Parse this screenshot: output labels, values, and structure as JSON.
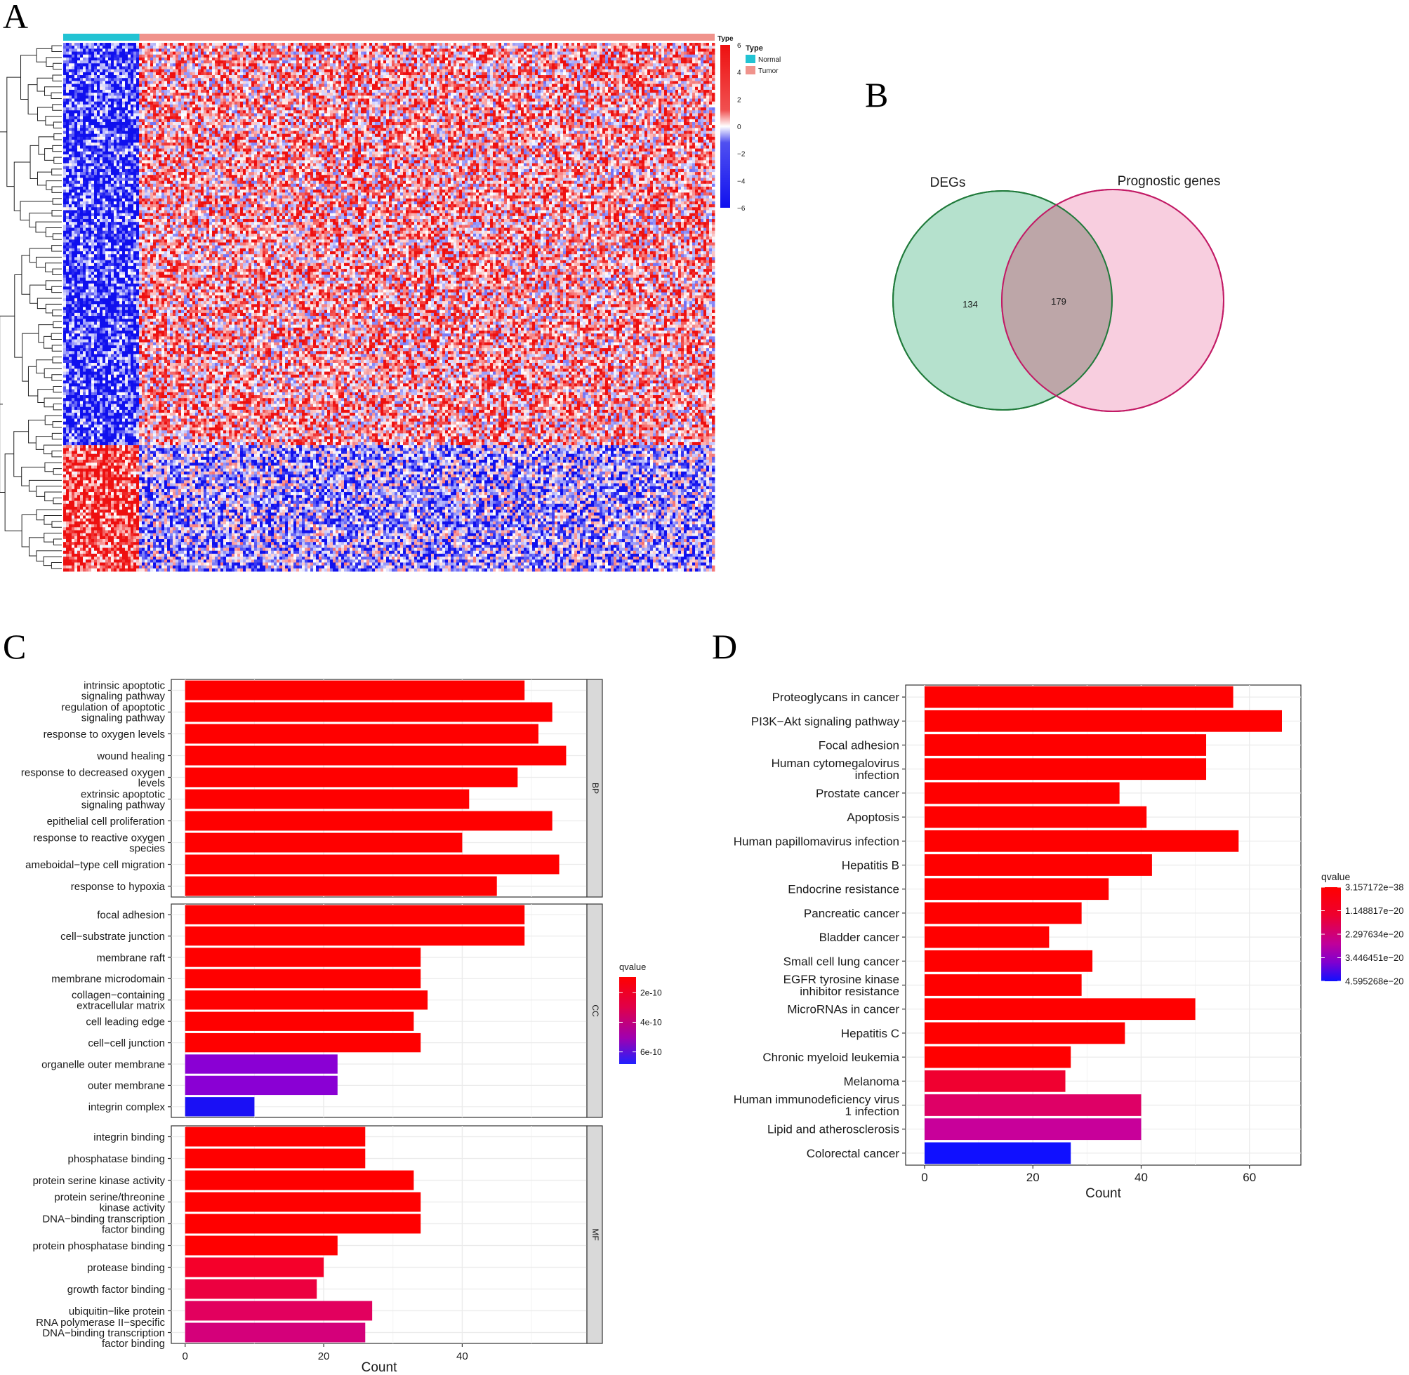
{
  "panels": {
    "A": "A",
    "B": "B",
    "C": "C",
    "D": "D"
  },
  "chart_data": [
    {
      "panel": "A",
      "type": "heatmap",
      "annotation": {
        "title": "Type",
        "groups": [
          {
            "name": "Normal",
            "color": "#22c3d3",
            "fraction": 0.117
          },
          {
            "name": "Tumor",
            "color": "#f0938c",
            "fraction": 0.883
          }
        ]
      },
      "scale": {
        "min": -6,
        "max": 6,
        "ticks": [
          6,
          4,
          2,
          0,
          -2,
          -4,
          -6
        ],
        "ticklabels": [
          "6",
          "4",
          "2",
          "0",
          "−2",
          "−4",
          "−6"
        ],
        "low_color": "#1010ee",
        "mid_color": "#ffffff",
        "high_color": "#ee1010"
      },
      "dendrogram": "rows",
      "row_split_fraction": 0.76
    },
    {
      "panel": "B",
      "type": "venn",
      "sets": [
        {
          "name": "DEGs",
          "color": "#a8dcc4",
          "stroke": "#1f7a3a"
        },
        {
          "name": "Prognostic genes",
          "color": "#f5b9d2",
          "stroke": "#c21a65"
        }
      ],
      "counts": {
        "only_first": 134,
        "intersection": 179
      }
    },
    {
      "panel": "C",
      "type": "bar",
      "orientation": "horizontal",
      "xlabel": "Count",
      "xticks": [
        0,
        20,
        40
      ],
      "xlim": [
        -2,
        58
      ],
      "legend": {
        "title": "qvalue",
        "ticks": [
          "2e-10",
          "4e-10",
          "6e-10"
        ]
      },
      "facets": [
        {
          "name": "BP",
          "categories": [
            [
              "intrinsic apoptotic",
              "signaling pathway"
            ],
            [
              "regulation of apoptotic",
              "signaling pathway"
            ],
            [
              "response to oxygen levels"
            ],
            [
              "wound healing"
            ],
            [
              "response to decreased oxygen",
              "levels"
            ],
            [
              "extrinsic apoptotic",
              "signaling pathway"
            ],
            [
              "epithelial cell proliferation"
            ],
            [
              "response to reactive oxygen",
              "species"
            ],
            [
              "ameboidal−type cell migration"
            ],
            [
              "response to hypoxia"
            ]
          ],
          "values": [
            49,
            53,
            51,
            55,
            48,
            41,
            53,
            40,
            54,
            45
          ],
          "colors": [
            "#ff0000",
            "#ff0000",
            "#ff0000",
            "#ff0000",
            "#ff0000",
            "#ff0000",
            "#ff0000",
            "#ff0000",
            "#ff0000",
            "#ff0000"
          ]
        },
        {
          "name": "CC",
          "categories": [
            [
              "focal adhesion"
            ],
            [
              "cell−substrate junction"
            ],
            [
              "membrane raft"
            ],
            [
              "membrane microdomain"
            ],
            [
              "collagen−containing",
              "extracellular matrix"
            ],
            [
              "cell leading edge"
            ],
            [
              "cell−cell junction"
            ],
            [
              "organelle outer membrane"
            ],
            [
              "outer membrane"
            ],
            [
              "integrin complex"
            ]
          ],
          "values": [
            49,
            49,
            34,
            34,
            35,
            33,
            34,
            22,
            22,
            10
          ],
          "colors": [
            "#ff0000",
            "#ff0000",
            "#ff0000",
            "#ff0000",
            "#ff0000",
            "#ff0000",
            "#ff0000",
            "#8a00d4",
            "#8a00d4",
            "#1a10f5"
          ]
        },
        {
          "name": "MF",
          "categories": [
            [
              "integrin binding"
            ],
            [
              "phosphatase binding"
            ],
            [
              "protein serine kinase activity"
            ],
            [
              "protein serine/threonine",
              "kinase activity"
            ],
            [
              "DNA−binding transcription",
              "factor binding"
            ],
            [
              "protein phosphatase binding"
            ],
            [
              "protease binding"
            ],
            [
              "growth factor binding"
            ],
            [
              "ubiquitin−like protein"
            ],
            [
              "RNA polymerase II−specific",
              "DNA−binding transcription",
              "factor binding"
            ]
          ],
          "values": [
            26,
            26,
            33,
            34,
            34,
            22,
            20,
            19,
            27,
            26
          ],
          "colors": [
            "#ff0000",
            "#ff0000",
            "#ff0000",
            "#ff0000",
            "#ff0000",
            "#ff0000",
            "#f5002a",
            "#ec0040",
            "#e2005e",
            "#d4007a"
          ]
        }
      ]
    },
    {
      "panel": "D",
      "type": "bar",
      "orientation": "horizontal",
      "xlabel": "Count",
      "xticks": [
        0,
        20,
        40,
        60
      ],
      "xlim": [
        -3.5,
        69.5
      ],
      "legend": {
        "title": "qvalue",
        "ticks": [
          "3.157172e−38",
          "1.148817e−20",
          "2.297634e−20",
          "3.446451e−20",
          "4.595268e−20"
        ]
      },
      "categories": [
        [
          "Proteoglycans in cancer"
        ],
        [
          "PI3K−Akt signaling pathway"
        ],
        [
          "Focal adhesion"
        ],
        [
          "Human cytomegalovirus",
          "infection"
        ],
        [
          "Prostate cancer"
        ],
        [
          "Apoptosis"
        ],
        [
          "Human papillomavirus infection"
        ],
        [
          "Hepatitis B"
        ],
        [
          "Endocrine resistance"
        ],
        [
          "Pancreatic cancer"
        ],
        [
          "Bladder cancer"
        ],
        [
          "Small cell lung cancer"
        ],
        [
          "EGFR tyrosine kinase",
          "inhibitor resistance"
        ],
        [
          "MicroRNAs in cancer"
        ],
        [
          "Hepatitis C"
        ],
        [
          "Chronic myeloid leukemia"
        ],
        [
          "Melanoma"
        ],
        [
          "Human immunodeficiency virus",
          "1 infection"
        ],
        [
          "Lipid and atherosclerosis"
        ],
        [
          "Colorectal cancer"
        ]
      ],
      "values": [
        57,
        66,
        52,
        52,
        36,
        41,
        58,
        42,
        34,
        29,
        23,
        31,
        29,
        50,
        37,
        27,
        26,
        40,
        40,
        27
      ],
      "colors": [
        "#ff0000",
        "#ff0000",
        "#ff0000",
        "#ff0000",
        "#ff0000",
        "#ff0000",
        "#ff0000",
        "#ff0000",
        "#ff0000",
        "#ff0000",
        "#ff0000",
        "#ff0000",
        "#ff0000",
        "#ff0000",
        "#ff0000",
        "#ff0000",
        "#f00030",
        "#de0066",
        "#c8009a",
        "#1010ff"
      ]
    }
  ]
}
